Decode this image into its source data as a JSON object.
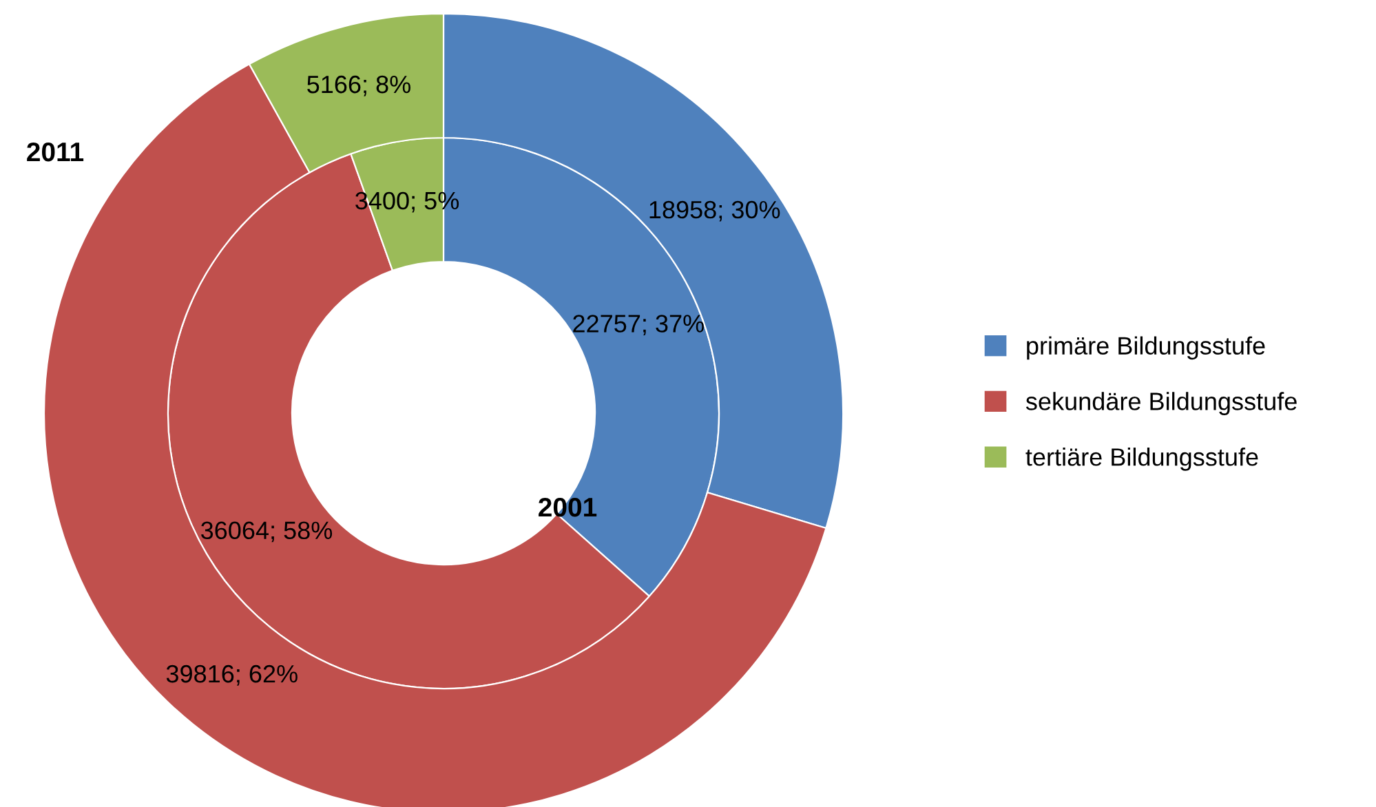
{
  "chart_data": {
    "type": "donut",
    "categories": [
      "primäre Bildungsstufe",
      "sekundäre Bildungsstufe",
      "tertiäre Bildungsstufe"
    ],
    "colors": [
      "#4f81bd",
      "#c0504d",
      "#9bbb59"
    ],
    "series": [
      {
        "name": "2001",
        "values": [
          22757,
          36064,
          3400
        ],
        "value_labels": [
          "22757; 37%",
          "36064; 58%",
          "3400; 5%"
        ]
      },
      {
        "name": "2011",
        "values": [
          18958,
          39816,
          5166
        ],
        "value_labels": [
          "18958; 30%",
          "39816; 62%",
          "5166; 8%"
        ]
      }
    ],
    "legend": "right"
  }
}
